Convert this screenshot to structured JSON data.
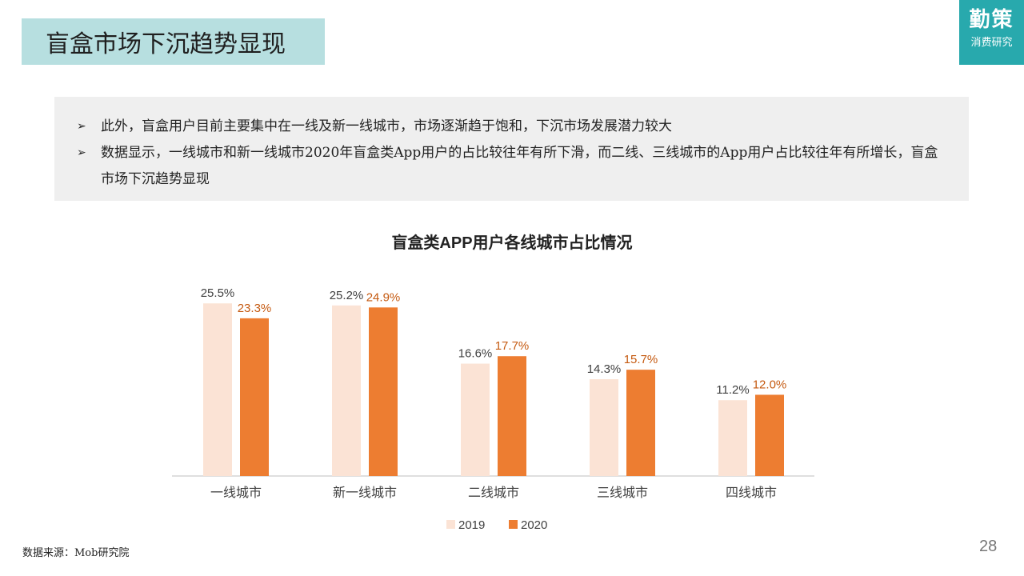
{
  "header": {
    "title": "盲盒市场下沉趋势显现"
  },
  "brand": {
    "line1": "勤策",
    "line2": "消费研究"
  },
  "bullets": [
    {
      "text": "此外，盲盒用户目前主要集中在一线及新一线城市，市场逐渐趋于饱和，下沉市场发展潜力较大"
    },
    {
      "text": "数据显示，一线城市和新一线城市2020年盲盒类App用户的占比较往年有所下滑，而二线、三线城市的App用户占比较往年有所增长，盲盒市场下沉趋势显现"
    }
  ],
  "chart_data": {
    "type": "bar",
    "title": "盲盒类APP用户各线城市占比情况",
    "categories": [
      "一线城市",
      "新一线城市",
      "二线城市",
      "三线城市",
      "四线城市"
    ],
    "series": [
      {
        "name": "2019",
        "values": [
          25.5,
          25.2,
          16.6,
          14.3,
          11.2
        ],
        "labels": [
          "25.5%",
          "25.2%",
          "16.6%",
          "14.3%",
          "11.2%"
        ],
        "color": "#fbe3d5",
        "label_color": "#404040"
      },
      {
        "name": "2020",
        "values": [
          23.3,
          24.9,
          17.7,
          15.7,
          12.0
        ],
        "labels": [
          "23.3%",
          "24.9%",
          "17.7%",
          "15.7%",
          "12.0%"
        ],
        "color": "#ed7d31",
        "label_color": "#c55a11"
      }
    ],
    "ylim": [
      0,
      26
    ],
    "grid": false,
    "legend": "bottom-center"
  },
  "footer": {
    "source": "数据来源：Mob研究院",
    "page": "28"
  }
}
